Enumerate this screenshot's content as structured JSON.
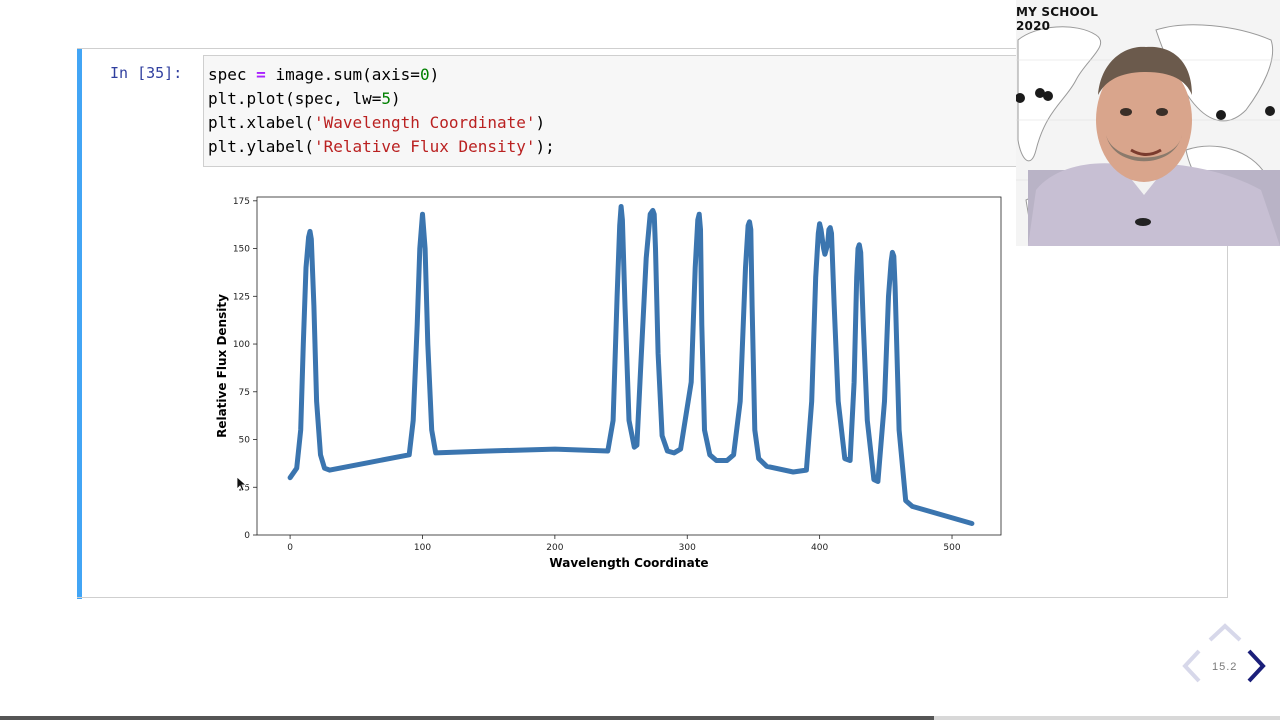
{
  "cell": {
    "prompt": "In [35]:",
    "code": {
      "line1": {
        "a": "spec ",
        "op": "=",
        "b": " image.sum(axis=",
        "n": "0",
        "c": ")"
      },
      "line2": {
        "a": "plt.plot(spec, lw=",
        "n": "5",
        "c": ")"
      },
      "line3": {
        "a": "plt.xlabel(",
        "s": "'Wavelength Coordinate'",
        "c": ")"
      },
      "line4": {
        "a": "plt.ylabel(",
        "s": "'Relative Flux Density'",
        "c": ");"
      }
    }
  },
  "chart_data": {
    "type": "line",
    "xlabel": "Wavelength Coordinate",
    "ylabel": "Relative Flux Density",
    "xlim": [
      -25,
      537
    ],
    "ylim": [
      0,
      177
    ],
    "xticks": [
      0,
      100,
      200,
      300,
      400,
      500
    ],
    "yticks": [
      0,
      25,
      50,
      75,
      100,
      125,
      150,
      175
    ],
    "line_color": "#3b75af",
    "series": [
      {
        "x": [
          0,
          5,
          8,
          10,
          12,
          14,
          15,
          16,
          18,
          20,
          23,
          26,
          30,
          60,
          90,
          93,
          96,
          98,
          100,
          102,
          104,
          107,
          110,
          150,
          200,
          240,
          244,
          247,
          249,
          250,
          251,
          253,
          256,
          260,
          262,
          265,
          269,
          272,
          274,
          275,
          276,
          278,
          281,
          285,
          290,
          295,
          303,
          306,
          308,
          309,
          310,
          311,
          313,
          317,
          322,
          330,
          335,
          340,
          344,
          346,
          347,
          348,
          349,
          351,
          354,
          360,
          380,
          390,
          394,
          397,
          399,
          400,
          401,
          403,
          404,
          406,
          407,
          408,
          409,
          411,
          414,
          419,
          423,
          426,
          428,
          429,
          430,
          431,
          433,
          436,
          441,
          444,
          449,
          452,
          454,
          455,
          456,
          457,
          460,
          465,
          470,
          515
        ],
        "y": [
          30,
          35,
          55,
          100,
          140,
          156,
          159,
          155,
          120,
          70,
          42,
          35,
          34,
          38,
          42,
          60,
          110,
          150,
          168,
          150,
          100,
          55,
          43,
          44,
          45,
          44,
          60,
          125,
          162,
          172,
          165,
          120,
          60,
          46,
          47,
          90,
          145,
          168,
          170,
          168,
          150,
          95,
          52,
          44,
          43,
          45,
          80,
          140,
          165,
          168,
          160,
          110,
          55,
          42,
          39,
          39,
          42,
          70,
          140,
          162,
          164,
          160,
          120,
          55,
          40,
          36,
          33,
          34,
          70,
          135,
          158,
          163,
          160,
          150,
          147,
          152,
          160,
          161,
          158,
          120,
          70,
          40,
          39,
          80,
          135,
          150,
          152,
          148,
          110,
          60,
          29,
          28,
          70,
          125,
          143,
          148,
          146,
          130,
          55,
          18,
          15,
          6
        ]
      }
    ]
  },
  "webcam": {
    "title": "MY SCHOOL 2020"
  },
  "nav": {
    "counter": "15.2",
    "progress": 0.73
  }
}
